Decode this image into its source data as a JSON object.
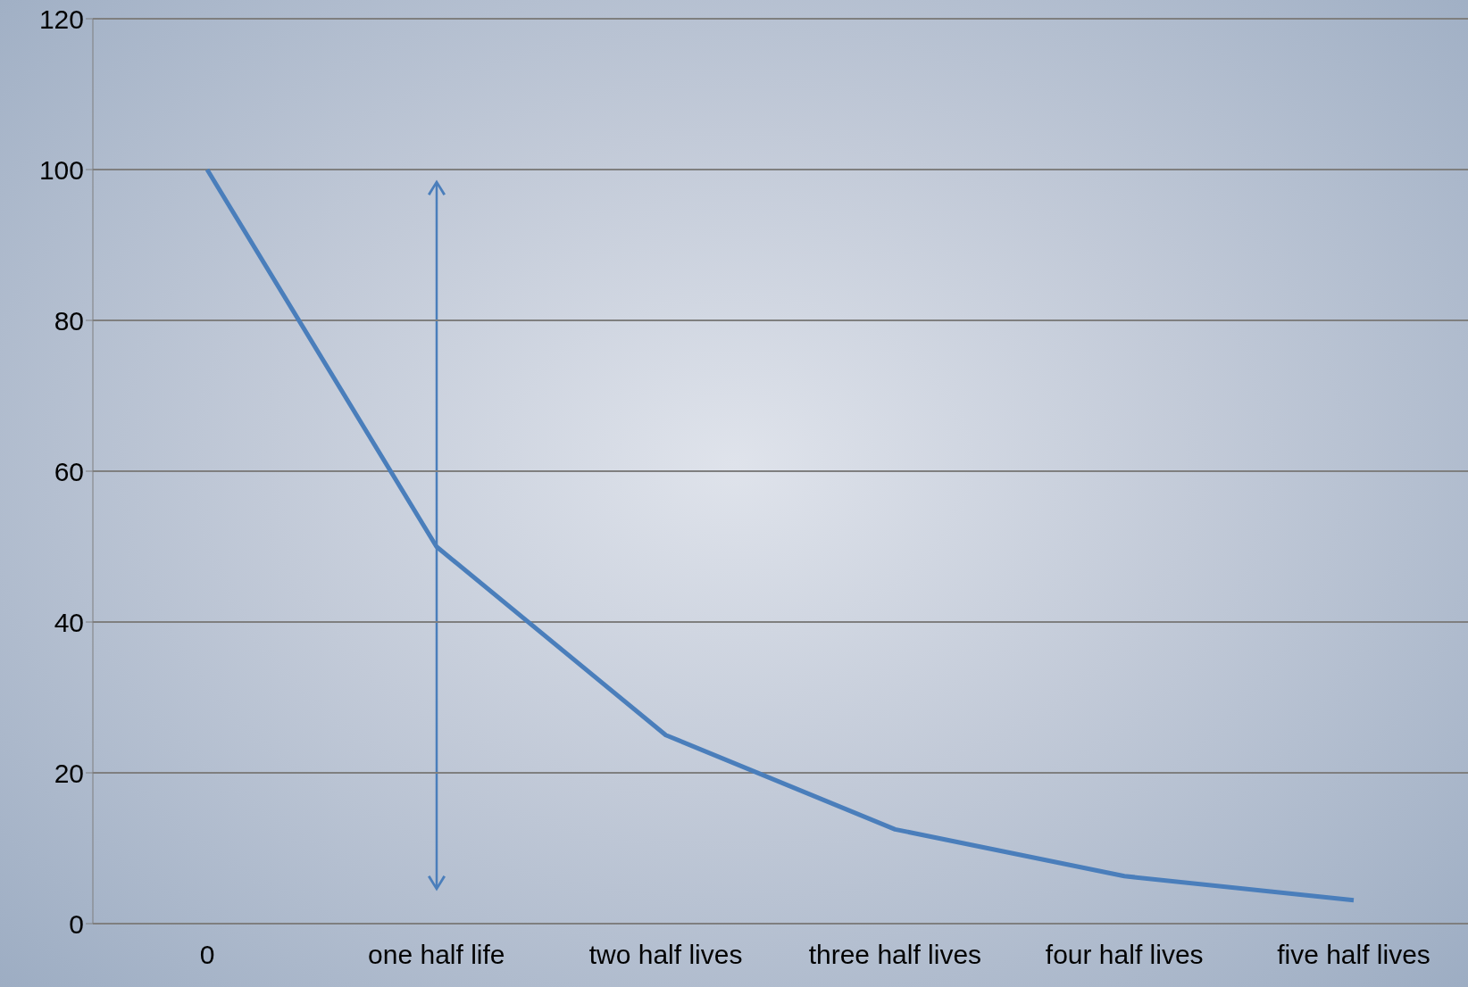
{
  "chart_data": {
    "type": "line",
    "categories": [
      "0",
      "one half life",
      "two half lives",
      "three half lives",
      "four half lives",
      "five half lives"
    ],
    "series": [
      {
        "color": "#4a7ebb",
        "values": [
          100,
          50,
          25,
          12.5,
          6.3,
          3.1
        ]
      }
    ],
    "ylim": [
      0,
      120
    ],
    "yticks": [
      0,
      20,
      40,
      60,
      80,
      100,
      120
    ],
    "grid": "y",
    "legend": false,
    "marker": "none",
    "line_style": "solid"
  }
}
